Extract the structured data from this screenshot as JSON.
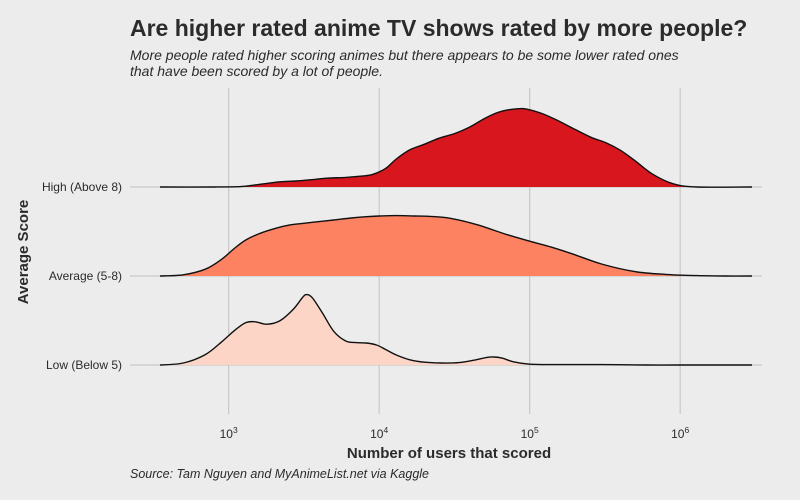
{
  "chart_data": {
    "type": "area",
    "subtype": "ridgeline density",
    "title": "Are higher rated anime TV shows rated by more people?",
    "subtitle_lines": [
      "More people rated higher scoring animes but there appears to be some lower rated ones",
      "that have been scored by a lot of people."
    ],
    "caption": "Source: Tam Nguyen and MyAnimeList.net via Kaggle",
    "xlabel": "Number of users that scored",
    "ylabel": "Average Score",
    "x_scale": "log10",
    "xlim": [
      350,
      3000000
    ],
    "x_ticks": [
      {
        "value": 1000,
        "base": "10",
        "exp": "3"
      },
      {
        "value": 10000,
        "base": "10",
        "exp": "4"
      },
      {
        "value": 100000,
        "base": "10",
        "exp": "5"
      },
      {
        "value": 1000000,
        "base": "10",
        "exp": "6"
      }
    ],
    "grid": true,
    "legend": "none",
    "categories": [
      "Low (Below 5)",
      "Average (5-8)",
      "High (Above 8)"
    ],
    "series": [
      {
        "name": "Low (Below 5)",
        "color": "#fdd5c6",
        "x": [
          350,
          500,
          700,
          900,
          1100,
          1300,
          1500,
          1800,
          2200,
          2700,
          3100,
          3300,
          3600,
          4200,
          5000,
          6000,
          7000,
          8200,
          9600,
          11000,
          13000,
          16000,
          20000,
          26000,
          34000,
          44000,
          52000,
          58000,
          66000,
          78000,
          100000,
          150000,
          300000,
          600000,
          1000000,
          3000000
        ],
        "y": [
          0.0,
          0.05,
          0.26,
          0.58,
          0.87,
          1.06,
          1.08,
          1.02,
          1.11,
          1.4,
          1.69,
          1.76,
          1.68,
          1.3,
          0.84,
          0.6,
          0.56,
          0.55,
          0.5,
          0.39,
          0.25,
          0.13,
          0.07,
          0.05,
          0.06,
          0.13,
          0.19,
          0.2,
          0.17,
          0.08,
          0.02,
          0.01,
          0.01,
          0.0,
          0.0,
          0.0
        ]
      },
      {
        "name": "Average (5-8)",
        "color": "#fc8262",
        "x": [
          350,
          500,
          700,
          900,
          1100,
          1300,
          1600,
          2000,
          2500,
          3200,
          4000,
          5000,
          6500,
          8000,
          10000,
          13000,
          17000,
          22000,
          30000,
          45000,
          70000,
          100000,
          140000,
          200000,
          300000,
          500000,
          800000,
          1300000,
          2000000,
          3000000
        ],
        "y": [
          0.0,
          0.03,
          0.17,
          0.42,
          0.7,
          0.9,
          1.06,
          1.18,
          1.27,
          1.32,
          1.36,
          1.4,
          1.45,
          1.48,
          1.5,
          1.51,
          1.5,
          1.49,
          1.44,
          1.28,
          1.04,
          0.87,
          0.72,
          0.53,
          0.3,
          0.11,
          0.04,
          0.01,
          0.0,
          0.0
        ]
      },
      {
        "name": "High (Above 8)",
        "color": "#d7161e",
        "x": [
          350,
          800,
          1200,
          1500,
          1800,
          2200,
          2800,
          3500,
          4500,
          6000,
          7500,
          9000,
          11000,
          13000,
          16000,
          20000,
          25000,
          32000,
          40000,
          50000,
          60000,
          70000,
          80000,
          90000,
          100000,
          120000,
          150000,
          200000,
          260000,
          320000,
          400000,
          500000,
          650000,
          900000,
          1300000,
          3000000
        ],
        "y": [
          0.0,
          0.0,
          0.01,
          0.05,
          0.09,
          0.13,
          0.15,
          0.18,
          0.22,
          0.24,
          0.27,
          0.31,
          0.46,
          0.7,
          0.93,
          1.07,
          1.22,
          1.34,
          1.5,
          1.71,
          1.85,
          1.92,
          1.95,
          1.96,
          1.93,
          1.84,
          1.68,
          1.44,
          1.23,
          1.11,
          0.92,
          0.66,
          0.33,
          0.08,
          0.0,
          0.0
        ]
      }
    ]
  }
}
